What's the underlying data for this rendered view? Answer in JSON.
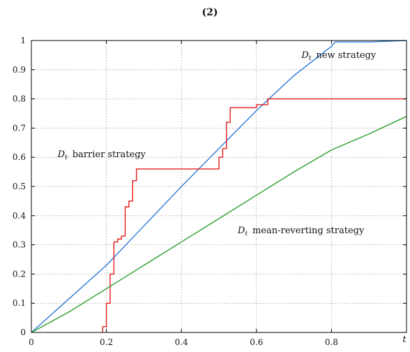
{
  "chart_data": {
    "type": "line",
    "title": "(2)",
    "xlabel": "t",
    "ylabel": "",
    "xlim": [
      0,
      1
    ],
    "ylim": [
      0,
      1
    ],
    "grid": true,
    "x_ticks": [
      "0",
      "0.2",
      "0.4",
      "0.6",
      "0.8"
    ],
    "y_ticks": [
      "0",
      "0.1",
      "0.2",
      "0.3",
      "0.4",
      "0.5",
      "0.6",
      "0.7",
      "0.8",
      "0.9",
      "1"
    ],
    "series": [
      {
        "name": "D_t new strategy",
        "color": "#2b7bd6",
        "x": [
          0,
          0.1,
          0.2,
          0.3,
          0.4,
          0.5,
          0.6,
          0.7,
          0.8,
          0.81,
          0.9,
          1.0
        ],
        "y": [
          0,
          0.115,
          0.23,
          0.365,
          0.5,
          0.63,
          0.76,
          0.88,
          0.98,
          0.995,
          0.995,
          1.0
        ]
      },
      {
        "name": "D_t barrier strategy",
        "color": "#e31a1c",
        "step": true,
        "x": [
          0.19,
          0.19,
          0.2,
          0.21,
          0.22,
          0.23,
          0.24,
          0.25,
          0.26,
          0.27,
          0.28,
          0.29,
          0.5,
          0.51,
          0.52,
          0.53,
          0.6,
          0.63,
          0.7,
          1.0
        ],
        "y": [
          0,
          0.02,
          0.1,
          0.2,
          0.31,
          0.32,
          0.33,
          0.43,
          0.45,
          0.52,
          0.56,
          0.56,
          0.6,
          0.63,
          0.72,
          0.77,
          0.78,
          0.8,
          0.8,
          0.8
        ]
      },
      {
        "name": "D_t mean-reverting strategy",
        "color": "#2ca02c",
        "x": [
          0,
          0.1,
          0.2,
          0.3,
          0.4,
          0.5,
          0.6,
          0.7,
          0.8,
          0.9,
          1.0
        ],
        "y": [
          0,
          0.07,
          0.15,
          0.23,
          0.31,
          0.39,
          0.47,
          0.55,
          0.625,
          0.68,
          0.74
        ]
      }
    ],
    "annotations": [
      {
        "text_main": "D",
        "text_sub": "t",
        "text_rest": "new strategy",
        "x": 0.72,
        "y": 0.94
      },
      {
        "text_main": "D",
        "text_sub": "t",
        "text_rest": "barrier strategy",
        "x": 0.07,
        "y": 0.6
      },
      {
        "text_main": "D",
        "text_sub": "t",
        "text_rest": "mean-reverting strategy",
        "x": 0.55,
        "y": 0.34
      }
    ]
  }
}
